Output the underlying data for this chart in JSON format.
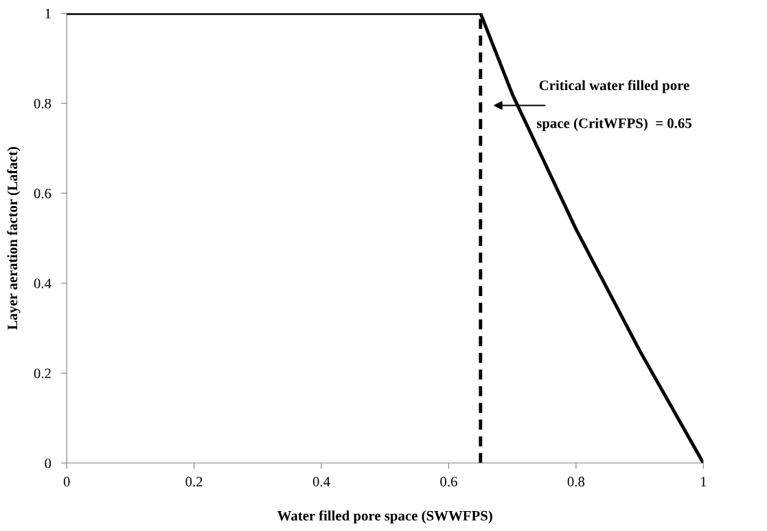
{
  "chart_data": {
    "type": "line",
    "xlabel": "Water filled pore space (SWWFPS)",
    "ylabel": "Layer aeration factor (Lafact)",
    "x": [
      0,
      0.65,
      0.7,
      0.8,
      0.9,
      1
    ],
    "series": [
      {
        "color": "#000000",
        "values": [
          1,
          1,
          0.82,
          0.52,
          0.25,
          0
        ]
      }
    ],
    "xlim": [
      0,
      1
    ],
    "ylim": [
      0,
      1
    ],
    "xticks": [
      0,
      0.2,
      0.4,
      0.6,
      0.8,
      1
    ],
    "yticks": [
      0,
      0.2,
      0.4,
      0.6,
      0.8,
      1
    ],
    "ref_lines": [
      {
        "axis": "x",
        "value": 0.65,
        "label": "Critical water filled pore\n\nspace (CritWFPS)  = 0.65",
        "color": "#000000",
        "line_style": "dashed"
      }
    ],
    "grid": false,
    "legend": false,
    "marker": "none",
    "line_style": "solid"
  }
}
